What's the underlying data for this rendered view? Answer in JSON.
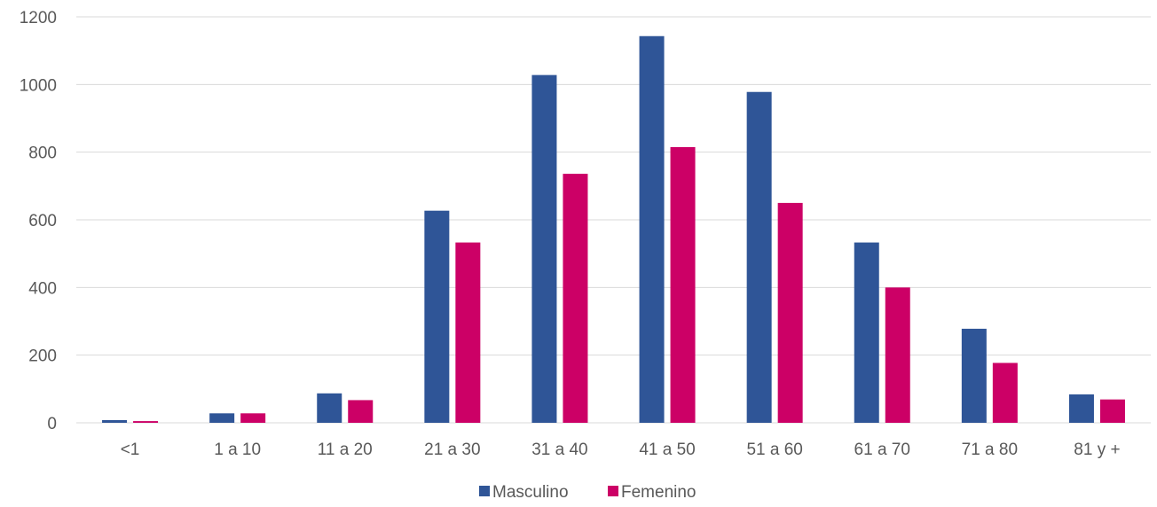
{
  "chart_data": {
    "type": "bar",
    "title": "",
    "xlabel": "",
    "ylabel": "",
    "categories": [
      "<1",
      "1 a 10",
      "11 a 20",
      "21 a 30",
      "31 a 40",
      "41 a 50",
      "51 a 60",
      "61 a 70",
      "71 a 80",
      "81 y +"
    ],
    "series": [
      {
        "name": "Masculino",
        "color": "#2F5597",
        "values": [
          8,
          28,
          87,
          627,
          1028,
          1143,
          978,
          533,
          278,
          84
        ]
      },
      {
        "name": "Femenino",
        "color": "#CC0066",
        "values": [
          5,
          28,
          67,
          533,
          736,
          815,
          650,
          400,
          177,
          69
        ]
      }
    ],
    "ylim": [
      0,
      1200
    ],
    "yticks": [
      0,
      200,
      400,
      600,
      800,
      1000,
      1200
    ],
    "grid": true,
    "legend": "bottom-center"
  }
}
